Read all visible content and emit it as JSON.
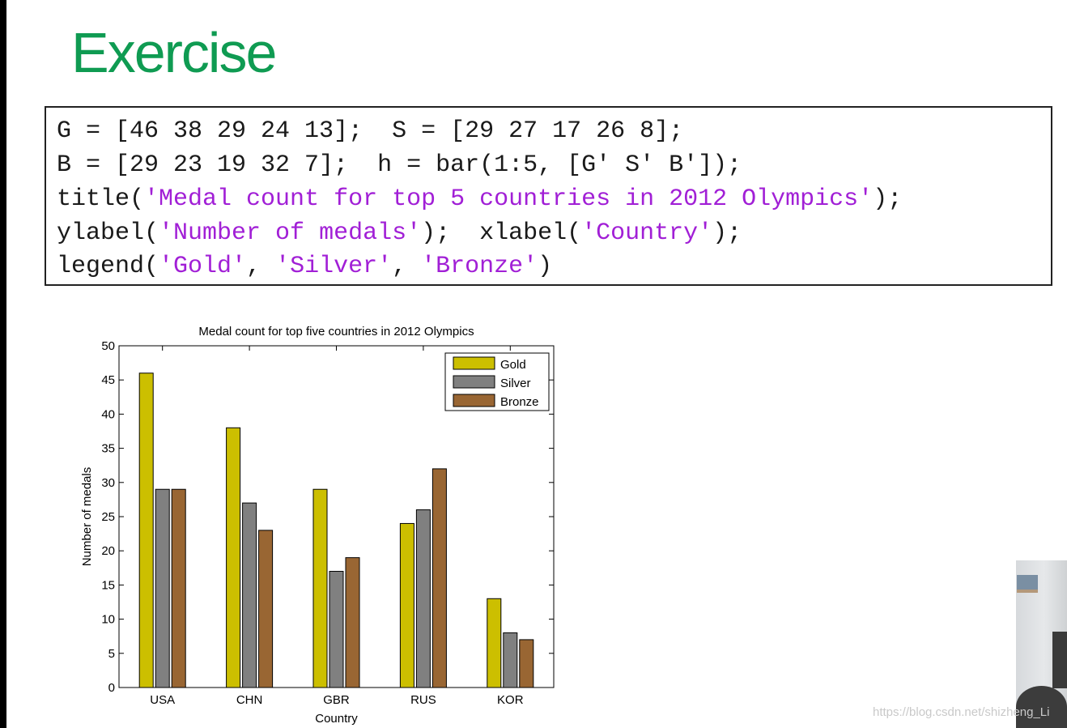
{
  "slide": {
    "title": "Exercise"
  },
  "code": {
    "lines": [
      [
        {
          "t": "G = [46 38 29 24 13];  S = [29 27 17 26 8];",
          "s": false
        }
      ],
      [
        {
          "t": "B = [29 23 19 32 7];  h = bar(1:5, [G' S' B']);",
          "s": false
        }
      ],
      [
        {
          "t": "title(",
          "s": false
        },
        {
          "t": "'Medal count for top 5 countries in 2012 Olympics'",
          "s": true
        },
        {
          "t": ");",
          "s": false
        }
      ],
      [
        {
          "t": "ylabel(",
          "s": false
        },
        {
          "t": "'Number of medals'",
          "s": true
        },
        {
          "t": ");  xlabel(",
          "s": false
        },
        {
          "t": "'Country'",
          "s": true
        },
        {
          "t": ");",
          "s": false
        }
      ],
      [
        {
          "t": "legend(",
          "s": false
        },
        {
          "t": "'Gold'",
          "s": true
        },
        {
          "t": ", ",
          "s": false
        },
        {
          "t": "'Silver'",
          "s": true
        },
        {
          "t": ", ",
          "s": false
        },
        {
          "t": "'Bronze'",
          "s": true
        },
        {
          "t": ")",
          "s": false
        }
      ]
    ]
  },
  "chart_data": {
    "type": "bar",
    "title": "Medal count for top five countries in 2012 Olympics",
    "xlabel": "Country",
    "ylabel": "Number of medals",
    "categories": [
      "USA",
      "CHN",
      "GBR",
      "RUS",
      "KOR"
    ],
    "series": [
      {
        "name": "Gold",
        "values": [
          46,
          38,
          29,
          24,
          13
        ],
        "color": "#ccbf00"
      },
      {
        "name": "Silver",
        "values": [
          29,
          27,
          17,
          26,
          8
        ],
        "color": "#808080"
      },
      {
        "name": "Bronze",
        "values": [
          29,
          23,
          19,
          32,
          7
        ],
        "color": "#996633"
      }
    ],
    "ylim": [
      0,
      50
    ],
    "yticks": [
      0,
      5,
      10,
      15,
      20,
      25,
      30,
      35,
      40,
      45,
      50
    ],
    "grid": false,
    "legend": "top-right"
  },
  "watermark": "https://blog.csdn.net/shizheng_Li"
}
